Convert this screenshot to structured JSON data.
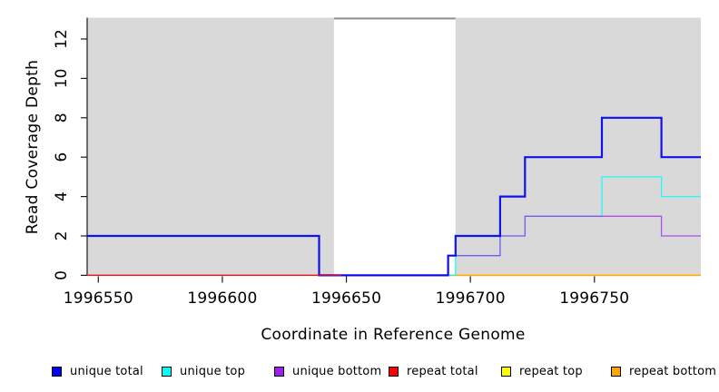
{
  "chart_data": {
    "type": "line",
    "subtype": "step-coverage",
    "title": "",
    "xlabel": "Coordinate in Reference Genome",
    "ylabel": "Read Coverage Depth",
    "xlim": [
      1996545,
      1996793
    ],
    "ylim": [
      0,
      13
    ],
    "x_ticks": [
      1996550,
      1996600,
      1996650,
      1996700,
      1996750
    ],
    "y_ticks": [
      0,
      2,
      4,
      6,
      8,
      10,
      12
    ],
    "grid": "off",
    "panel_background": "#d9d9d9",
    "masked_region": {
      "note": "white unmappable repeat region with clipped-coverage marker line at top",
      "start": 1996645,
      "end": 1996694,
      "fill": "#ffffff",
      "top_line_color": "#8f8f8f"
    },
    "axis_color": "#1a1a1a",
    "series": [
      {
        "name": "repeat top",
        "color": "#FFFF00",
        "width": 1.2,
        "opacity": 1,
        "steps": [
          [
            1996545,
            0
          ]
        ],
        "end": 1996793
      },
      {
        "name": "repeat bottom",
        "color": "#FFA500",
        "width": 1.6,
        "opacity": 0.95,
        "steps": [
          [
            1996545,
            0
          ]
        ],
        "end": 1996793
      },
      {
        "name": "unique top",
        "color": "#00FFFF",
        "width": 1.3,
        "opacity": 0.85,
        "steps": [
          [
            1996545,
            0
          ],
          [
            1996694,
            1
          ],
          [
            1996712,
            2
          ],
          [
            1996722,
            3
          ],
          [
            1996753,
            5
          ],
          [
            1996777,
            4
          ]
        ],
        "end": 1996793
      },
      {
        "name": "unique bottom",
        "color": "#A020F0",
        "width": 1.3,
        "opacity": 0.75,
        "steps": [
          [
            1996545,
            0
          ],
          [
            1996691,
            1
          ],
          [
            1996712,
            2
          ],
          [
            1996722,
            3
          ],
          [
            1996777,
            2
          ]
        ],
        "end": 1996793
      },
      {
        "name": "unique total",
        "color": "#0000EE",
        "width": 2.2,
        "opacity": 0.92,
        "steps": [
          [
            1996545,
            2
          ],
          [
            1996639,
            0
          ],
          [
            1996691,
            1
          ],
          [
            1996694,
            2
          ],
          [
            1996712,
            4
          ],
          [
            1996722,
            6
          ],
          [
            1996753,
            8
          ],
          [
            1996777,
            6
          ]
        ],
        "end": 1996793
      },
      {
        "name": "repeat total",
        "color": "#FF0000",
        "width": 1.3,
        "opacity": 0.8,
        "steps": [
          [
            1996545,
            0
          ]
        ],
        "end": 1996648
      }
    ],
    "legend_position": "bottom"
  },
  "legend": {
    "items": [
      {
        "label": "unique total",
        "color": "#0000EE"
      },
      {
        "label": "unique top",
        "color": "#00FFFF"
      },
      {
        "label": "unique bottom",
        "color": "#A020F0"
      },
      {
        "label": "repeat total",
        "color": "#FF0000"
      },
      {
        "label": "repeat top",
        "color": "#FFFF00"
      },
      {
        "label": "repeat bottom",
        "color": "#FFA500"
      }
    ]
  }
}
